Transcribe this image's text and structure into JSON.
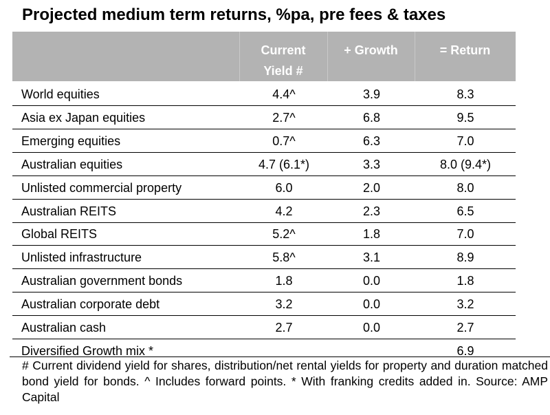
{
  "chart_data": {
    "type": "table",
    "title": "Projected medium term returns, %pa, pre fees & taxes",
    "columns": [
      "",
      "Current Yield #",
      "+ Growth",
      "= Return"
    ],
    "header": {
      "yield_line1": "Current",
      "yield_line2": "Yield #",
      "growth": "+ Growth",
      "return": "= Return"
    },
    "rows": [
      {
        "name": "World equities",
        "yield": "4.4^",
        "growth": "3.9",
        "return": "8.3"
      },
      {
        "name": "Asia ex Japan equities",
        "yield": "2.7^",
        "growth": "6.8",
        "return": "9.5"
      },
      {
        "name": "Emerging equities",
        "yield": "0.7^",
        "growth": "6.3",
        "return": "7.0"
      },
      {
        "name": "Australian equities",
        "yield": "4.7 (6.1*)",
        "growth": "3.3",
        "return": "8.0 (9.4*)"
      },
      {
        "name": "Unlisted commercial property",
        "yield": "6.0",
        "growth": "2.0",
        "return": "8.0"
      },
      {
        "name": "Australian REITS",
        "yield": "4.2",
        "growth": "2.3",
        "return": "6.5"
      },
      {
        "name": "Global REITS",
        "yield": "5.2^",
        "growth": "1.8",
        "return": "7.0"
      },
      {
        "name": "Unlisted infrastructure",
        "yield": "5.8^",
        "growth": "3.1",
        "return": "8.9"
      },
      {
        "name": "Australian government bonds",
        "yield": "1.8",
        "growth": "0.0",
        "return": "1.8"
      },
      {
        "name": "Australian corporate debt",
        "yield": "3.2",
        "growth": "0.0",
        "return": "3.2"
      },
      {
        "name": "Australian cash",
        "yield": "2.7",
        "growth": "0.0",
        "return": "2.7"
      },
      {
        "name": "Diversified Growth mix *",
        "yield": "",
        "growth": "",
        "return": "6.9"
      }
    ],
    "footnote": "# Current dividend yield for shares, distribution/net rental yields for property and duration matched bond yield for bonds. ^ Includes forward points. * With franking credits added in. Source: AMP Capital"
  },
  "colors": {
    "header_band": "#b3b3b3",
    "header_text": "#ffffff",
    "rule": "#000000"
  }
}
